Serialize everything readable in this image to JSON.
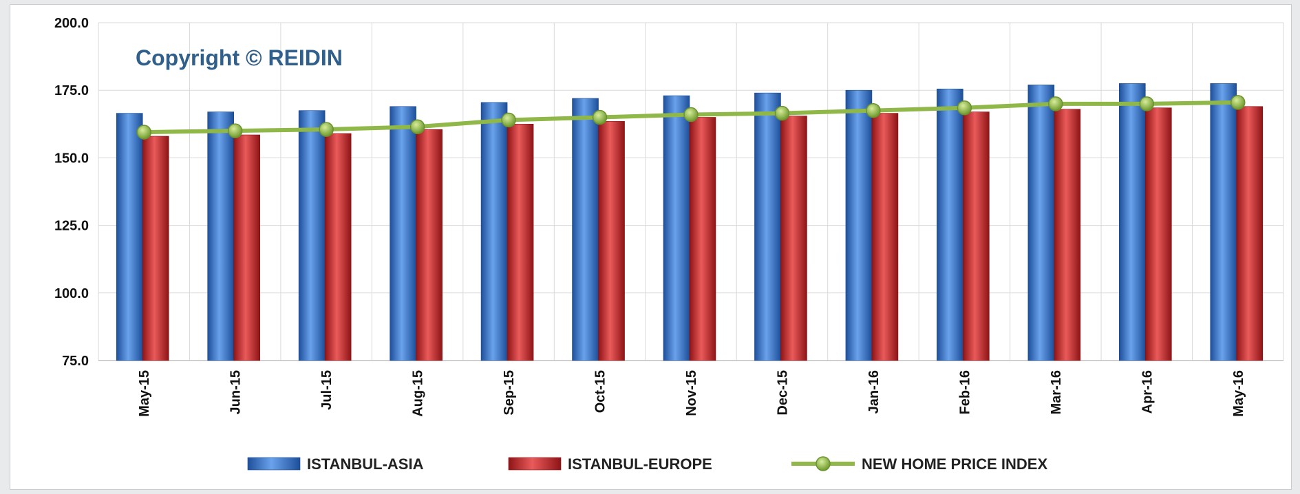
{
  "chart_data": {
    "type": "bar",
    "title": "",
    "annotation": "Copyright © REIDIN",
    "xlabel": "",
    "ylabel": "",
    "ylim": [
      75,
      200
    ],
    "y_ticks": [
      "75.0",
      "100.0",
      "125.0",
      "150.0",
      "175.0",
      "200.0"
    ],
    "grid": "vertical",
    "legend_position": "bottom",
    "categories": [
      "May-15",
      "Jun-15",
      "Jul-15",
      "Aug-15",
      "Sep-15",
      "Oct-15",
      "Nov-15",
      "Dec-15",
      "Jan-16",
      "Feb-16",
      "Mar-16",
      "Apr-16",
      "May-16"
    ],
    "series": [
      {
        "name": "ISTANBUL-ASIA",
        "type": "bar",
        "color": "#2f6fc6",
        "values": [
          166.5,
          167.0,
          167.5,
          169.0,
          170.5,
          172.0,
          173.0,
          174.0,
          175.0,
          175.5,
          177.0,
          177.5,
          177.5
        ]
      },
      {
        "name": "ISTANBUL-EUROPE",
        "type": "bar",
        "color": "#c8282a",
        "values": [
          158.0,
          158.5,
          159.0,
          160.5,
          162.5,
          163.5,
          165.0,
          165.5,
          166.5,
          167.0,
          168.0,
          168.5,
          169.0
        ]
      },
      {
        "name": "NEW HOME PRICE INDEX",
        "type": "line",
        "color": "#8fb848",
        "values": [
          159.5,
          160.0,
          160.5,
          161.5,
          164.0,
          165.0,
          166.0,
          166.5,
          167.5,
          168.5,
          170.0,
          170.0,
          170.5
        ]
      }
    ]
  }
}
